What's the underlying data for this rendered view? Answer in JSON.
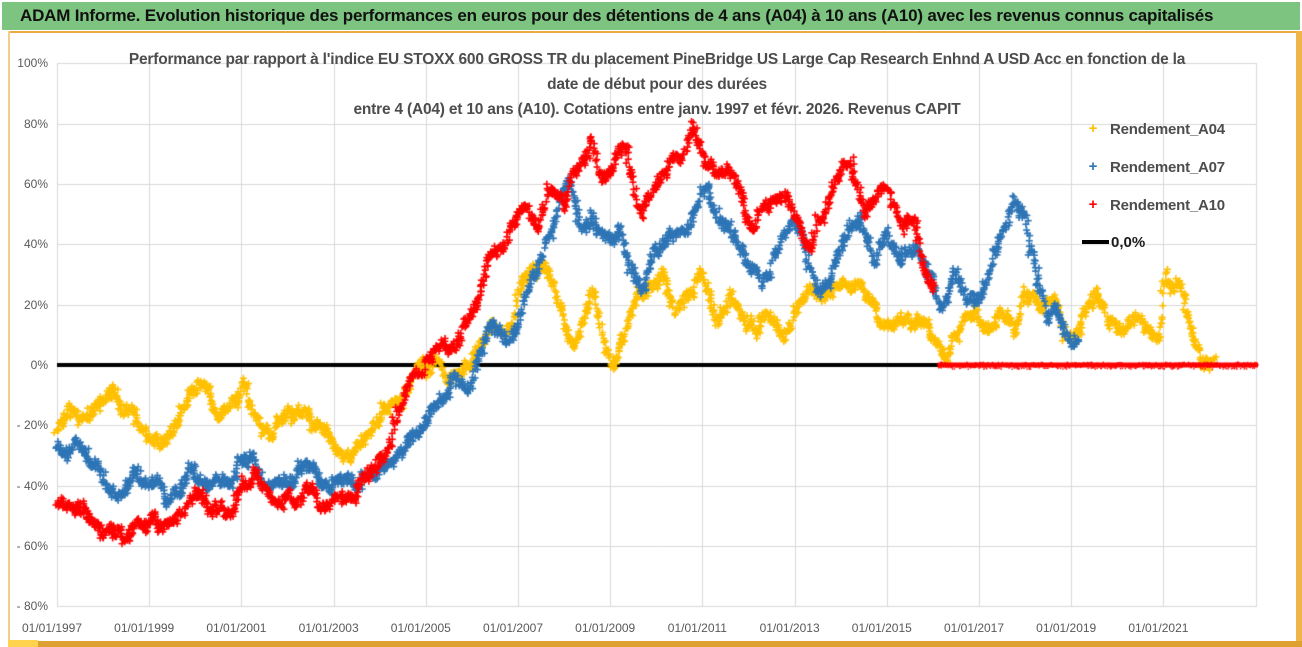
{
  "header": {
    "title": "ADAM Informe. Evolution historique des performances en euros pour des détentions de 4 ans (A04) à 10 ans (A10) avec les revenus connus capitalisés",
    "bg_color": "#7CC47F"
  },
  "chart": {
    "title_lines": [
      "Performance par rapport à l'indice EU STOXX 600 GROSS TR  du placement  PineBridge US Large Cap Research Enhnd A USD Acc en fonction de la",
      "date de début pour des durées",
      "entre 4 (A04) et 10 ans (A10). Cotations entre janv. 1997 et févr. 2026. Revenus CAPIT"
    ],
    "colors": {
      "grid": "#D9D9D9",
      "axis_text": "#595959",
      "title_text": "#4d4d4d",
      "zero_line": "#000000",
      "border_gold": "#E9AC41"
    }
  },
  "chart_data": {
    "type": "scatter",
    "title": "Performance par rapport à l'indice EU STOXX 600 GROSS TR du placement PineBridge US Large Cap Research Enhnd A USD Acc en fonction de la date de début pour des durées entre 4 (A04) et 10 ans (A10). Cotations entre janv. 1997 et févr. 2026. Revenus CAPIT",
    "marker": "+",
    "grid": true,
    "legend_position": "right-top",
    "ylim": [
      -80,
      100
    ],
    "y_tick_values": [
      100,
      80,
      60,
      40,
      20,
      0,
      -20,
      -40,
      -60,
      -80
    ],
    "y_tick_labels": [
      "100%",
      "80%",
      "60%",
      "40%",
      "20%",
      "0%",
      "- 20%",
      "- 40%",
      "- 60%",
      "- 80%"
    ],
    "x_tick_years": [
      1997,
      1999,
      2001,
      2003,
      2005,
      2007,
      2009,
      2011,
      2013,
      2015,
      2017,
      2019,
      2021
    ],
    "x_tick_labels": [
      "01/01/1997",
      "01/01/1999",
      "01/01/2001",
      "01/01/2003",
      "01/01/2005",
      "01/01/2007",
      "01/01/2009",
      "01/01/2011",
      "01/01/2013",
      "01/01/2015",
      "01/01/2017",
      "01/01/2019",
      "01/01/2021"
    ],
    "xlim_years": [
      1997.0,
      2023.05
    ],
    "zero_line": {
      "label": "0,0%",
      "color": "#000000",
      "value": 0
    },
    "series": [
      {
        "name": "Rendement_A04",
        "color": "#FFC000",
        "anchors": [
          [
            1997.0,
            -20
          ],
          [
            1997.25,
            -15
          ],
          [
            1997.5,
            -19
          ],
          [
            1997.75,
            -13
          ],
          [
            1998.0,
            -10
          ],
          [
            1998.2,
            -6
          ],
          [
            1998.45,
            -12
          ],
          [
            1998.7,
            -17
          ],
          [
            1999.0,
            -22
          ],
          [
            1999.3,
            -24
          ],
          [
            1999.6,
            -17
          ],
          [
            1999.9,
            -13
          ],
          [
            2000.15,
            -8
          ],
          [
            2000.4,
            -13
          ],
          [
            2000.7,
            -16
          ],
          [
            2001.0,
            -11
          ],
          [
            2001.3,
            -16
          ],
          [
            2001.6,
            -21
          ],
          [
            2001.9,
            -17
          ],
          [
            2002.2,
            -14
          ],
          [
            2002.5,
            -19
          ],
          [
            2002.8,
            -23
          ],
          [
            2003.1,
            -27
          ],
          [
            2003.4,
            -29
          ],
          [
            2003.7,
            -24
          ],
          [
            2004.0,
            -19
          ],
          [
            2004.3,
            -13
          ],
          [
            2004.6,
            -7
          ],
          [
            2004.9,
            -3
          ],
          [
            2005.2,
            1
          ],
          [
            2005.5,
            -3
          ],
          [
            2005.8,
            -1
          ],
          [
            2006.1,
            4
          ],
          [
            2006.4,
            12
          ],
          [
            2006.7,
            10
          ],
          [
            2007.0,
            22
          ],
          [
            2007.3,
            30
          ],
          [
            2007.55,
            34
          ],
          [
            2007.8,
            26
          ],
          [
            2008.1,
            12
          ],
          [
            2008.3,
            9
          ],
          [
            2008.6,
            21
          ],
          [
            2008.85,
            12
          ],
          [
            2009.05,
            1
          ],
          [
            2009.3,
            10
          ],
          [
            2009.6,
            19
          ],
          [
            2009.9,
            26
          ],
          [
            2010.15,
            28
          ],
          [
            2010.4,
            16
          ],
          [
            2010.7,
            24
          ],
          [
            2011.0,
            31
          ],
          [
            2011.3,
            14
          ],
          [
            2011.6,
            21
          ],
          [
            2011.9,
            14
          ],
          [
            2012.2,
            10
          ],
          [
            2012.5,
            16
          ],
          [
            2012.8,
            9
          ],
          [
            2013.1,
            22
          ],
          [
            2013.35,
            28
          ],
          [
            2013.6,
            20
          ],
          [
            2013.9,
            26
          ],
          [
            2014.2,
            30
          ],
          [
            2014.5,
            24
          ],
          [
            2014.8,
            17
          ],
          [
            2015.1,
            16
          ],
          [
            2015.4,
            14
          ],
          [
            2015.7,
            12
          ],
          [
            2015.95,
            7
          ],
          [
            2016.25,
            4
          ],
          [
            2016.6,
            15
          ],
          [
            2016.9,
            20
          ],
          [
            2017.2,
            10
          ],
          [
            2017.5,
            22
          ],
          [
            2017.8,
            15
          ],
          [
            2018.05,
            24
          ],
          [
            2018.3,
            18
          ],
          [
            2018.6,
            22
          ],
          [
            2018.9,
            8
          ],
          [
            2019.2,
            14
          ],
          [
            2019.5,
            22
          ],
          [
            2019.8,
            18
          ],
          [
            2020.1,
            13
          ],
          [
            2020.4,
            20
          ],
          [
            2020.7,
            12
          ],
          [
            2020.9,
            13
          ],
          [
            2021.05,
            32
          ],
          [
            2021.2,
            24
          ],
          [
            2021.35,
            27
          ],
          [
            2021.5,
            16
          ],
          [
            2021.7,
            9
          ],
          [
            2021.85,
            0
          ],
          [
            2022.0,
            -3
          ],
          [
            2022.12,
            0
          ]
        ]
      },
      {
        "name": "Rendement_A07",
        "color": "#2E75B6",
        "anchors": [
          [
            1997.0,
            -27
          ],
          [
            1997.2,
            -31
          ],
          [
            1997.45,
            -27
          ],
          [
            1997.7,
            -33
          ],
          [
            1998.0,
            -38
          ],
          [
            1998.3,
            -44
          ],
          [
            1998.55,
            -39
          ],
          [
            1998.8,
            -36
          ],
          [
            1999.1,
            -41
          ],
          [
            1999.4,
            -44
          ],
          [
            1999.7,
            -39
          ],
          [
            2000.0,
            -34
          ],
          [
            2000.3,
            -38
          ],
          [
            2000.6,
            -41
          ],
          [
            2000.9,
            -35
          ],
          [
            2001.2,
            -31
          ],
          [
            2001.5,
            -37
          ],
          [
            2001.8,
            -41
          ],
          [
            2002.1,
            -37
          ],
          [
            2002.4,
            -34
          ],
          [
            2002.7,
            -39
          ],
          [
            2003.0,
            -43
          ],
          [
            2003.3,
            -45
          ],
          [
            2003.6,
            -41
          ],
          [
            2003.9,
            -36
          ],
          [
            2004.2,
            -31
          ],
          [
            2004.5,
            -27
          ],
          [
            2004.8,
            -23
          ],
          [
            2005.1,
            -15
          ],
          [
            2005.4,
            -7
          ],
          [
            2005.65,
            -3
          ],
          [
            2005.9,
            -7
          ],
          [
            2006.2,
            2
          ],
          [
            2006.5,
            13
          ],
          [
            2006.8,
            9
          ],
          [
            2007.1,
            20
          ],
          [
            2007.4,
            31
          ],
          [
            2007.65,
            45
          ],
          [
            2007.9,
            55
          ],
          [
            2008.1,
            60
          ],
          [
            2008.35,
            44
          ],
          [
            2008.6,
            49
          ],
          [
            2008.9,
            40
          ],
          [
            2009.2,
            46
          ],
          [
            2009.5,
            33
          ],
          [
            2009.75,
            28
          ],
          [
            2010.0,
            38
          ],
          [
            2010.3,
            44
          ],
          [
            2010.6,
            42
          ],
          [
            2010.9,
            54
          ],
          [
            2011.1,
            57
          ],
          [
            2011.4,
            48
          ],
          [
            2011.7,
            41
          ],
          [
            2012.0,
            35
          ],
          [
            2012.3,
            28
          ],
          [
            2012.6,
            38
          ],
          [
            2012.9,
            49
          ],
          [
            2013.2,
            41
          ],
          [
            2013.5,
            25
          ],
          [
            2013.8,
            31
          ],
          [
            2014.1,
            44
          ],
          [
            2014.4,
            47
          ],
          [
            2014.7,
            35
          ],
          [
            2015.0,
            42
          ],
          [
            2015.3,
            34
          ],
          [
            2015.6,
            41
          ],
          [
            2015.9,
            29
          ],
          [
            2016.2,
            18
          ],
          [
            2016.5,
            26
          ],
          [
            2016.8,
            20
          ],
          [
            2017.1,
            25
          ],
          [
            2017.4,
            39
          ],
          [
            2017.75,
            56
          ],
          [
            2018.0,
            48
          ],
          [
            2018.3,
            28
          ],
          [
            2018.5,
            14
          ],
          [
            2018.65,
            22
          ],
          [
            2018.85,
            10
          ],
          [
            2019.0,
            6
          ],
          [
            2019.15,
            10
          ]
        ]
      },
      {
        "name": "Rendement_A10",
        "color": "#FF0000",
        "anchors": [
          [
            1997.0,
            -47
          ],
          [
            1997.3,
            -52
          ],
          [
            1997.6,
            -49
          ],
          [
            1997.9,
            -55
          ],
          [
            1998.15,
            -59
          ],
          [
            1998.35,
            -57
          ],
          [
            1998.6,
            -53
          ],
          [
            1998.9,
            -50
          ],
          [
            1999.2,
            -53
          ],
          [
            1999.5,
            -48
          ],
          [
            1999.8,
            -45
          ],
          [
            2000.1,
            -42
          ],
          [
            2000.4,
            -46
          ],
          [
            2000.7,
            -49
          ],
          [
            2001.0,
            -41
          ],
          [
            2001.25,
            -36
          ],
          [
            2001.5,
            -42
          ],
          [
            2001.8,
            -47
          ],
          [
            2002.1,
            -44
          ],
          [
            2002.4,
            -40
          ],
          [
            2002.7,
            -45
          ],
          [
            2003.0,
            -47
          ],
          [
            2003.3,
            -44
          ],
          [
            2003.6,
            -40
          ],
          [
            2003.9,
            -34
          ],
          [
            2004.2,
            -25
          ],
          [
            2004.5,
            -15
          ],
          [
            2004.8,
            -5
          ],
          [
            2005.0,
            3
          ],
          [
            2005.25,
            8
          ],
          [
            2005.5,
            4
          ],
          [
            2005.75,
            10
          ],
          [
            2006.0,
            20
          ],
          [
            2006.3,
            33
          ],
          [
            2006.6,
            41
          ],
          [
            2006.9,
            46
          ],
          [
            2007.2,
            53
          ],
          [
            2007.45,
            46
          ],
          [
            2007.75,
            60
          ],
          [
            2008.0,
            54
          ],
          [
            2008.3,
            67
          ],
          [
            2008.6,
            74
          ],
          [
            2008.85,
            58
          ],
          [
            2009.1,
            64
          ],
          [
            2009.35,
            71
          ],
          [
            2009.65,
            49
          ],
          [
            2009.95,
            57
          ],
          [
            2010.25,
            64
          ],
          [
            2010.55,
            70
          ],
          [
            2010.8,
            78
          ],
          [
            2011.0,
            71
          ],
          [
            2011.25,
            62
          ],
          [
            2011.55,
            67
          ],
          [
            2011.85,
            55
          ],
          [
            2012.15,
            44
          ],
          [
            2012.45,
            52
          ],
          [
            2012.75,
            57
          ],
          [
            2013.05,
            50
          ],
          [
            2013.35,
            38
          ],
          [
            2013.65,
            54
          ],
          [
            2013.95,
            62
          ],
          [
            2014.2,
            67
          ],
          [
            2014.5,
            50
          ],
          [
            2014.8,
            57
          ],
          [
            2015.05,
            61
          ],
          [
            2015.35,
            45
          ],
          [
            2015.6,
            49
          ],
          [
            2015.85,
            31
          ],
          [
            2016.05,
            25
          ]
        ],
        "zero_tail_years": [
          2016.1,
          2023.05
        ]
      }
    ]
  }
}
